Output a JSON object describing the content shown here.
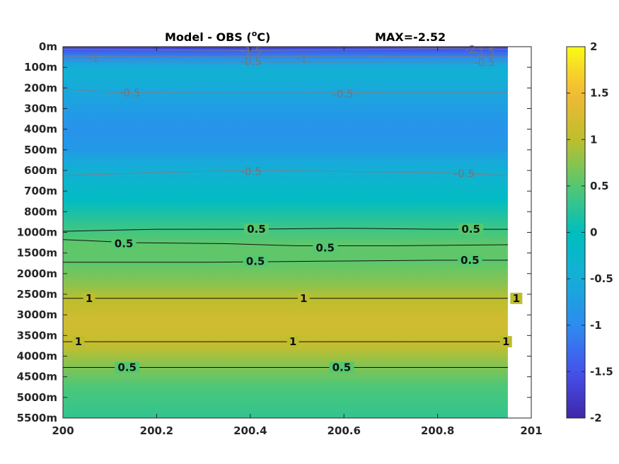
{
  "chart_data": {
    "type": "heatmap",
    "title": "Model - OBS (",
    "title_unit": "o",
    "title_unit_end": "C)",
    "max_label": "MAX=-2.52",
    "x_ticks": [
      "200",
      "200.2",
      "200.4",
      "200.6",
      "200.8",
      "201"
    ],
    "x_range": [
      200,
      201
    ],
    "data_x_end": 200.95,
    "y_ticks": [
      "0m",
      "100m",
      "200m",
      "300m",
      "400m",
      "500m",
      "600m",
      "700m",
      "800m",
      "1000m",
      "1500m",
      "2000m",
      "2500m",
      "3000m",
      "3500m",
      "4000m",
      "4500m",
      "5000m",
      "5500m"
    ],
    "colorbar": {
      "ticks": [
        "2",
        "1.5",
        "1",
        "0.5",
        "0",
        "-0.5",
        "-1",
        "-1.5",
        "-2"
      ],
      "range": [
        -2,
        2
      ],
      "colormap": "parula"
    },
    "depth_profile": [
      {
        "level": 0.0,
        "value": -1.8
      },
      {
        "level": 0.2,
        "value": -1.4
      },
      {
        "level": 0.6,
        "value": -0.9
      },
      {
        "level": 0.9,
        "value": -0.55
      },
      {
        "level": 1.3,
        "value": -0.4
      },
      {
        "level": 2.0,
        "value": -0.55
      },
      {
        "level": 3.0,
        "value": -0.75
      },
      {
        "level": 4.0,
        "value": -0.9
      },
      {
        "level": 5.0,
        "value": -0.8
      },
      {
        "level": 5.6,
        "value": -0.55
      },
      {
        "level": 6.5,
        "value": -0.3
      },
      {
        "level": 7.5,
        "value": -0.05
      },
      {
        "level": 8.4,
        "value": 0.25
      },
      {
        "level": 9.0,
        "value": 0.4
      },
      {
        "level": 9.6,
        "value": 0.55
      },
      {
        "level": 10.5,
        "value": 0.55
      },
      {
        "level": 11.5,
        "value": 0.75
      },
      {
        "level": 12.3,
        "value": 1.0
      },
      {
        "level": 13.3,
        "value": 1.18
      },
      {
        "level": 14.5,
        "value": 1.05
      },
      {
        "level": 15.4,
        "value": 0.75
      },
      {
        "level": 16.5,
        "value": 0.45
      },
      {
        "level": 18.0,
        "value": 0.3
      }
    ],
    "contours": [
      {
        "value": "-1.5",
        "style": "gray",
        "points": [
          [
            200,
            0.12
          ],
          [
            200.4,
            0.18
          ],
          [
            200.8,
            0.1
          ],
          [
            200.95,
            0.12
          ]
        ],
        "labels": [
          [
            200.402,
            0.2
          ]
        ]
      },
      {
        "value": "-2",
        "style": "gray",
        "points": [],
        "labels": [
          [
            200.87,
            0.13
          ]
        ]
      },
      {
        "value": "-1.5",
        "style": "gray",
        "points": [],
        "labels": [
          [
            200.9,
            0.25
          ]
        ]
      },
      {
        "value": "-1",
        "style": "gray",
        "points": [
          [
            200,
            0.45
          ],
          [
            200.3,
            0.5
          ],
          [
            200.6,
            0.45
          ],
          [
            200.95,
            0.5
          ]
        ],
        "labels": [
          [
            200.065,
            0.55
          ],
          [
            200.51,
            0.58
          ]
        ]
      },
      {
        "value": "-0.5",
        "style": "gray",
        "points": [
          [
            200,
            0.7
          ],
          [
            200.5,
            0.75
          ],
          [
            200.95,
            0.72
          ]
        ],
        "labels": [
          [
            200.402,
            0.72
          ],
          [
            200.9,
            0.77
          ]
        ]
      },
      {
        "value": "-0.5",
        "style": "gray",
        "points": [
          [
            200,
            2.05
          ],
          [
            200.1,
            2.2
          ],
          [
            200.3,
            2.25
          ],
          [
            200.5,
            2.25
          ],
          [
            200.7,
            2.2
          ],
          [
            200.95,
            2.2
          ]
        ],
        "labels": [
          [
            200.143,
            2.25
          ],
          [
            200.598,
            2.3
          ]
        ]
      },
      {
        "value": "-0.5",
        "style": "gray",
        "points": [
          [
            200,
            6.25
          ],
          [
            200.2,
            6.1
          ],
          [
            200.4,
            6.0
          ],
          [
            200.6,
            6.05
          ],
          [
            200.8,
            6.1
          ],
          [
            200.95,
            6.25
          ]
        ],
        "labels": [
          [
            200.402,
            6.05
          ],
          [
            200.857,
            6.15
          ]
        ]
      },
      {
        "value": "0.5",
        "style": "dark",
        "points": [
          [
            200,
            8.95
          ],
          [
            200.2,
            8.85
          ],
          [
            200.4,
            8.85
          ],
          [
            200.6,
            8.8
          ],
          [
            200.8,
            8.85
          ],
          [
            200.95,
            8.85
          ]
        ],
        "labels": [
          [
            200.413,
            8.85
          ],
          [
            200.871,
            8.85
          ]
        ]
      },
      {
        "value": "0.5",
        "style": "dark",
        "points": [
          [
            200,
            9.35
          ],
          [
            200.15,
            9.5
          ],
          [
            200.35,
            9.55
          ],
          [
            200.5,
            9.65
          ],
          [
            200.7,
            9.65
          ],
          [
            200.95,
            9.6
          ]
        ],
        "labels": [
          [
            200.13,
            9.55
          ],
          [
            200.56,
            9.75
          ]
        ]
      },
      {
        "value": "0.5",
        "style": "dark",
        "points": [
          [
            200,
            10.45
          ],
          [
            200.3,
            10.45
          ],
          [
            200.55,
            10.4
          ],
          [
            200.8,
            10.35
          ],
          [
            200.95,
            10.35
          ]
        ],
        "labels": [
          [
            200.411,
            10.4
          ],
          [
            200.869,
            10.35
          ]
        ]
      },
      {
        "value": "1",
        "style": "dark",
        "points": [
          [
            200,
            12.2
          ],
          [
            200.95,
            12.2
          ]
        ],
        "labels": [
          [
            200.056,
            12.2
          ],
          [
            200.514,
            12.2
          ],
          [
            200.968,
            12.2
          ]
        ]
      },
      {
        "value": "1",
        "style": "dark",
        "points": [
          [
            200,
            14.3
          ],
          [
            200.95,
            14.3
          ]
        ],
        "labels": [
          [
            200.033,
            14.3
          ],
          [
            200.491,
            14.3
          ],
          [
            200.946,
            14.3
          ]
        ]
      },
      {
        "value": "0.5",
        "style": "dark",
        "points": [
          [
            200,
            15.55
          ],
          [
            200.95,
            15.55
          ]
        ],
        "labels": [
          [
            200.137,
            15.55
          ],
          [
            200.595,
            15.55
          ]
        ]
      }
    ]
  }
}
